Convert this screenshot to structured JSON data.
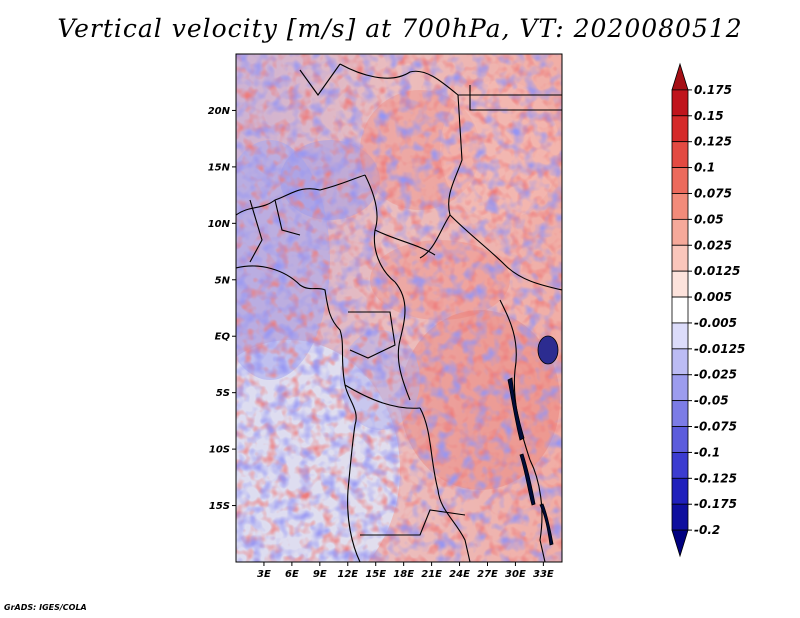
{
  "title": "Vertical velocity [m/s] at 700hPa, VT: 2020080512",
  "credit": "GrADS: IGES/COLA",
  "map": {
    "lat_labels": [
      "20N",
      "15N",
      "10N",
      "5N",
      "EQ",
      "5S",
      "10S",
      "15S"
    ],
    "lat_values": [
      20,
      15,
      10,
      5,
      0,
      -5,
      -10,
      -15
    ],
    "lon_labels": [
      "3E",
      "6E",
      "9E",
      "12E",
      "15E",
      "18E",
      "21E",
      "24E",
      "27E",
      "30E",
      "33E"
    ],
    "lon_values": [
      3,
      6,
      9,
      12,
      15,
      18,
      21,
      24,
      27,
      30,
      33
    ],
    "lon_range": [
      0,
      35
    ],
    "lat_range": [
      -20,
      25
    ]
  },
  "colorbar": {
    "labels": [
      "0.175",
      "0.15",
      "0.125",
      "0.1",
      "0.075",
      "0.05",
      "0.025",
      "0.0125",
      "0.005",
      "-0.005",
      "-0.0125",
      "-0.025",
      "-0.05",
      "-0.075",
      "-0.1",
      "-0.125",
      "-0.175",
      "-0.2"
    ],
    "colors": [
      "#a50f15",
      "#c0141c",
      "#d52a2a",
      "#e34a42",
      "#ec6a5c",
      "#f28b7a",
      "#f6a99a",
      "#fac6bb",
      "#fde3dc",
      "#ffffff",
      "#dcdcfa",
      "#bcbcf4",
      "#9c9cee",
      "#7c7ce6",
      "#5c5cdc",
      "#3c3cd0",
      "#2020bc",
      "#0f0f9e",
      "#000080"
    ]
  }
}
